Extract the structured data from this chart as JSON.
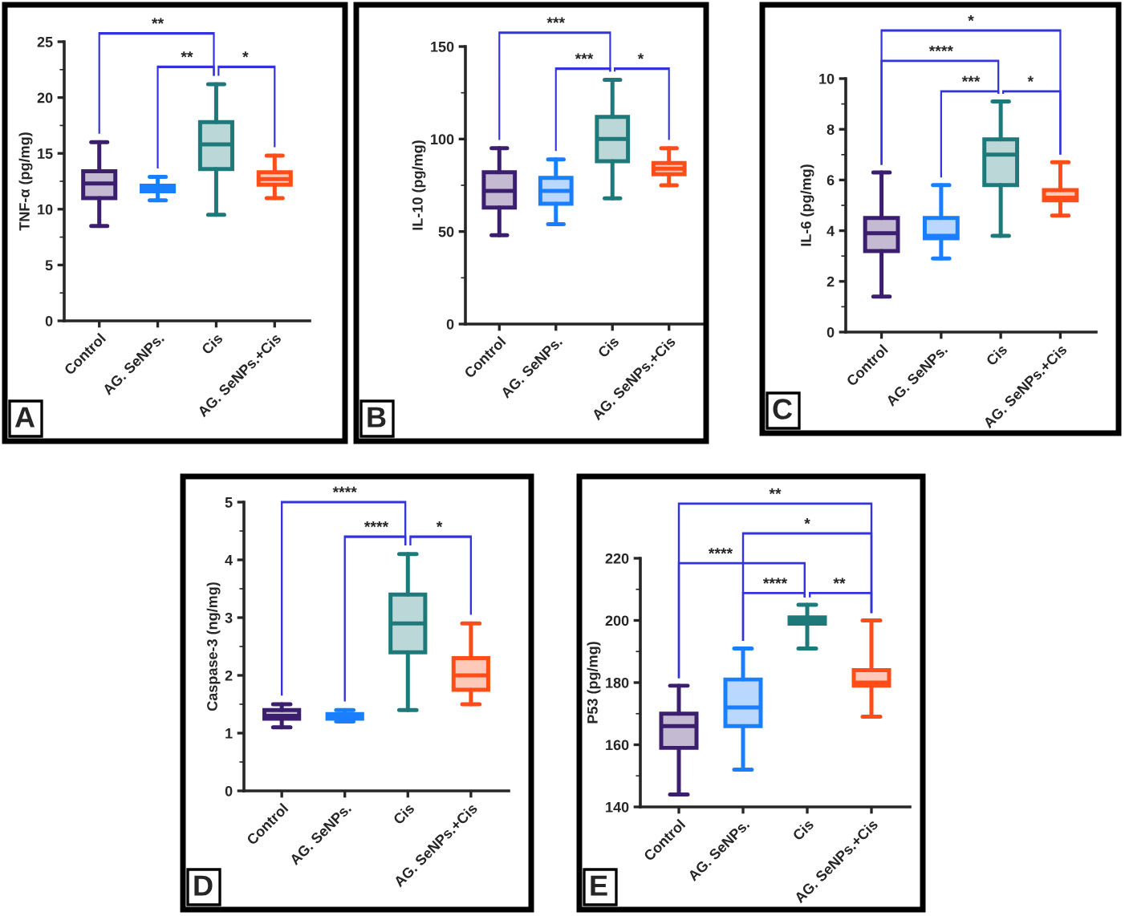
{
  "chart_data": [
    {
      "type": "box",
      "ylabel": "TNF-α (pg/mg)",
      "categories": [
        "Control",
        "AG. SeNPs.",
        "Cis",
        "AG. SeNPs.+Cis"
      ],
      "colors": [
        "#3b1f6e",
        "#1a7fff",
        "#1e7a7a",
        "#ff4d1a"
      ],
      "ylim": [
        0,
        25
      ],
      "yticks": [
        0,
        5,
        10,
        15,
        20,
        25
      ],
      "annotations": [
        "A",
        "**",
        "**",
        "*"
      ],
      "boxes": [
        {
          "low": 8.5,
          "q1": 11,
          "median": 12.3,
          "q3": 13.4,
          "high": 16
        },
        {
          "low": 10.8,
          "q1": 11.6,
          "median": 11.8,
          "q3": 12.1,
          "high": 12.9
        },
        {
          "low": 9.5,
          "q1": 13.6,
          "median": 15.8,
          "q3": 17.8,
          "high": 21.2
        },
        {
          "low": 11,
          "q1": 12.2,
          "median": 12.7,
          "q3": 13.3,
          "high": 14.8
        }
      ]
    },
    {
      "type": "box",
      "ylabel": "IL-10 (pg/mg)",
      "categories": [
        "Control",
        "AG. SeNPs.",
        "Cis",
        "AG. SeNPs.+Cis"
      ],
      "colors": [
        "#3b1f6e",
        "#1a7fff",
        "#1e7a7a",
        "#ff4d1a"
      ],
      "ylim": [
        0,
        150
      ],
      "yticks": [
        0,
        50,
        100,
        150
      ],
      "annotations": [
        "B",
        "***",
        "***",
        "*"
      ],
      "boxes": [
        {
          "low": 48,
          "q1": 63,
          "median": 72,
          "q3": 82,
          "high": 95
        },
        {
          "low": 54,
          "q1": 65,
          "median": 72,
          "q3": 79,
          "high": 89
        },
        {
          "low": 68,
          "q1": 88,
          "median": 100,
          "q3": 112,
          "high": 132
        },
        {
          "low": 75,
          "q1": 81,
          "median": 84,
          "q3": 87,
          "high": 95
        }
      ]
    },
    {
      "type": "box",
      "ylabel": "IL-6 (pg/mg)",
      "categories": [
        "Control",
        "AG. SeNPs.",
        "Cis",
        "AG. SeNPs.+Cis"
      ],
      "colors": [
        "#3b1f6e",
        "#1a7fff",
        "#1e7a7a",
        "#ff4d1a"
      ],
      "ylim": [
        0,
        10
      ],
      "yticks": [
        0,
        2,
        4,
        6,
        8,
        10
      ],
      "annotations": [
        "C",
        "*",
        "****",
        "***",
        "*"
      ],
      "boxes": [
        {
          "low": 1.4,
          "q1": 3.2,
          "median": 3.9,
          "q3": 4.5,
          "high": 6.3
        },
        {
          "low": 2.9,
          "q1": 3.7,
          "median": 3.8,
          "q3": 4.5,
          "high": 5.8
        },
        {
          "low": 3.8,
          "q1": 5.8,
          "median": 7.0,
          "q3": 7.6,
          "high": 9.1
        },
        {
          "low": 4.6,
          "q1": 5.2,
          "median": 5.3,
          "q3": 5.6,
          "high": 6.7
        }
      ]
    },
    {
      "type": "box",
      "ylabel": "Caspase-3 (ng/mg)",
      "categories": [
        "Control",
        "AG. SeNPs.",
        "Cis",
        "AG. SeNPs.+Cis"
      ],
      "colors": [
        "#3b1f6e",
        "#1a7fff",
        "#1e7a7a",
        "#ff4d1a"
      ],
      "ylim": [
        0,
        5
      ],
      "yticks": [
        0,
        1,
        2,
        3,
        4,
        5
      ],
      "annotations": [
        "D",
        "****",
        "****",
        "*"
      ],
      "boxes": [
        {
          "low": 1.1,
          "q1": 1.25,
          "median": 1.3,
          "q3": 1.4,
          "high": 1.5
        },
        {
          "low": 1.2,
          "q1": 1.25,
          "median": 1.3,
          "q3": 1.33,
          "high": 1.4
        },
        {
          "low": 1.4,
          "q1": 2.4,
          "median": 2.9,
          "q3": 3.4,
          "high": 4.1
        },
        {
          "low": 1.5,
          "q1": 1.75,
          "median": 2.0,
          "q3": 2.3,
          "high": 2.9
        }
      ]
    },
    {
      "type": "box",
      "ylabel": "P53 (pg/mg)",
      "categories": [
        "Control",
        "AG. SeNPs.",
        "Cis",
        "AG. SeNPs.+Cis"
      ],
      "colors": [
        "#3b1f6e",
        "#1a7fff",
        "#1e7a7a",
        "#ff4d1a"
      ],
      "ylim": [
        140,
        220
      ],
      "yticks": [
        140,
        160,
        180,
        200,
        220
      ],
      "annotations": [
        "E",
        "**",
        "*",
        "****",
        "****",
        "**"
      ],
      "boxes": [
        {
          "low": 144,
          "q1": 159,
          "median": 166,
          "q3": 170,
          "high": 179
        },
        {
          "low": 152,
          "q1": 166,
          "median": 172,
          "q3": 181,
          "high": 191
        },
        {
          "low": 191,
          "q1": 199,
          "median": 200,
          "q3": 201,
          "high": 205
        },
        {
          "low": 169,
          "q1": 179,
          "median": 180,
          "q3": 184,
          "high": 200
        }
      ]
    }
  ]
}
